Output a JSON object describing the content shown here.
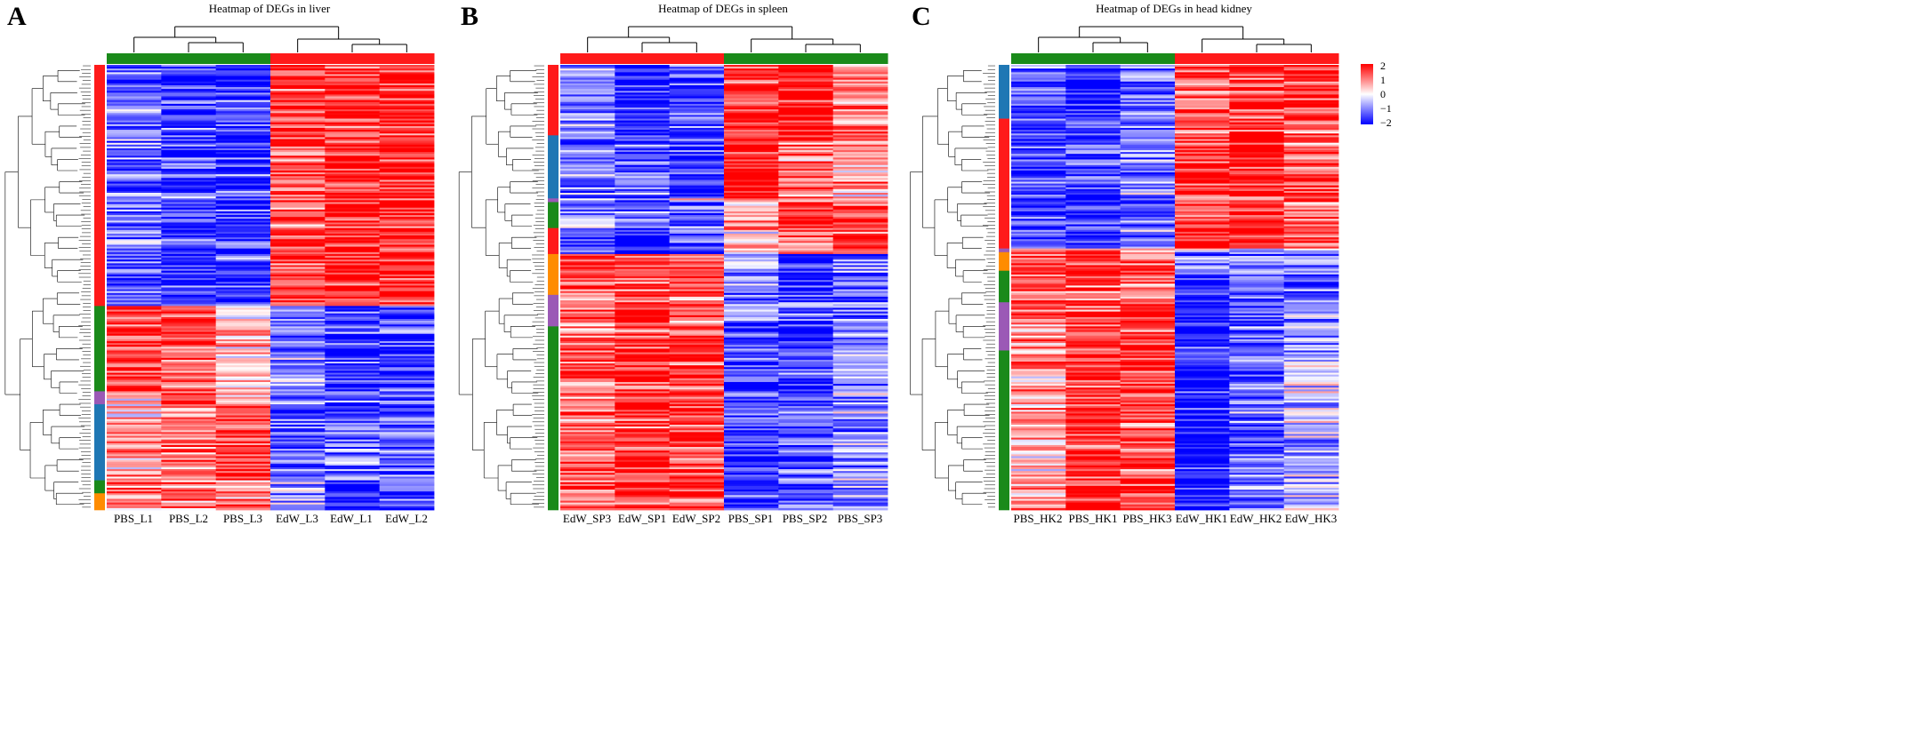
{
  "figure": {
    "panels": [
      {
        "letter": "A",
        "title": "Heatmap of DEGs in liver",
        "samples": [
          "PBS_L1",
          "PBS_L2",
          "PBS_L3",
          "EdW_L3",
          "EdW_L1",
          "EdW_L2"
        ],
        "group_colors": [
          "#1a8a1a",
          "#1a8a1a",
          "#1a8a1a",
          "#ff1a1a",
          "#ff1a1a",
          "#ff1a1a"
        ],
        "rows": 240,
        "clusters": [
          {
            "color": "#ff1a1a",
            "frac": 0.54,
            "pattern": [
              -1.0,
              -1.2,
              -1.3,
              1.1,
              1.3,
              1.4
            ]
          },
          {
            "color": "#1a8a1a",
            "frac": 0.19,
            "pattern": [
              1.4,
              1.2,
              0.4,
              -0.7,
              -1.2,
              -1.3
            ]
          },
          {
            "color": "#9b59b6",
            "frac": 0.03,
            "pattern": [
              0.5,
              1.5,
              0.5,
              -0.5,
              -1.0,
              -1.0
            ]
          },
          {
            "color": "#1f77b4",
            "frac": 0.17,
            "pattern": [
              0.6,
              1.0,
              1.2,
              -1.1,
              -0.8,
              -1.0
            ]
          },
          {
            "color": "#1a8a1a",
            "frac": 0.03,
            "pattern": [
              1.0,
              0.8,
              0.9,
              -0.5,
              -1.7,
              -1.0
            ]
          },
          {
            "color": "#ff8c00",
            "frac": 0.04,
            "pattern": [
              0.9,
              0.9,
              1.0,
              -0.5,
              -1.3,
              -1.2
            ]
          }
        ]
      },
      {
        "letter": "B",
        "title": "Heatmap of DEGs in spleen",
        "samples": [
          "EdW_SP3",
          "EdW_SP1",
          "EdW_SP2",
          "PBS_SP1",
          "PBS_SP2",
          "PBS_SP3"
        ],
        "group_colors": [
          "#ff1a1a",
          "#ff1a1a",
          "#ff1a1a",
          "#1a8a1a",
          "#1a8a1a",
          "#1a8a1a"
        ],
        "rows": 240,
        "clusters": [
          {
            "color": "#ff1a1a",
            "frac": 0.16,
            "pattern": [
              -0.8,
              -1.5,
              -1.2,
              1.3,
              1.4,
              0.6
            ]
          },
          {
            "color": "#1f77b4",
            "frac": 0.14,
            "pattern": [
              -0.9,
              -1.0,
              -1.3,
              1.6,
              0.8,
              0.5
            ]
          },
          {
            "color": "#9b59b6",
            "frac": 0.01,
            "pattern": [
              -0.5,
              -1.0,
              0.5,
              0.8,
              0.5,
              0.5
            ]
          },
          {
            "color": "#1a8a1a",
            "frac": 0.06,
            "pattern": [
              -0.8,
              -1.0,
              -1.1,
              0.5,
              1.3,
              1.2
            ]
          },
          {
            "color": "#ff1a1a",
            "frac": 0.06,
            "pattern": [
              -0.9,
              -1.5,
              -0.9,
              0.4,
              0.9,
              1.3
            ]
          },
          {
            "color": "#ff8c00",
            "frac": 0.09,
            "pattern": [
              1.2,
              1.0,
              1.1,
              -0.6,
              -1.5,
              -0.9
            ]
          },
          {
            "color": "#9b59b6",
            "frac": 0.07,
            "pattern": [
              1.0,
              1.4,
              1.0,
              -0.8,
              -1.0,
              -1.0
            ]
          },
          {
            "color": "#1a8a1a",
            "frac": 0.41,
            "pattern": [
              1.0,
              1.3,
              1.2,
              -1.2,
              -1.1,
              -0.7
            ]
          }
        ]
      },
      {
        "letter": "C",
        "title": "Heatmap of DEGs in head kidney",
        "samples": [
          "PBS_HK2",
          "PBS_HK1",
          "PBS_HK3",
          "EdW_HK1",
          "EdW_HK2",
          "EdW_HK3"
        ],
        "group_colors": [
          "#1a8a1a",
          "#1a8a1a",
          "#1a8a1a",
          "#ff1a1a",
          "#ff1a1a",
          "#ff1a1a"
        ],
        "rows": 240,
        "clusters": [
          {
            "color": "#1f77b4",
            "frac": 0.12,
            "pattern": [
              -1.1,
              -1.5,
              -0.9,
              1.1,
              1.2,
              1.3
            ]
          },
          {
            "color": "#ff1a1a",
            "frac": 0.29,
            "pattern": [
              -1.2,
              -1.3,
              -0.8,
              1.2,
              1.4,
              1.0
            ]
          },
          {
            "color": "#9b59b6",
            "frac": 0.01,
            "pattern": [
              0.5,
              0.5,
              0.5,
              -0.5,
              -0.5,
              -0.5
            ]
          },
          {
            "color": "#ff8c00",
            "frac": 0.04,
            "pattern": [
              1.1,
              1.2,
              0.9,
              -1.0,
              -0.9,
              -0.8
            ]
          },
          {
            "color": "#1a8a1a",
            "frac": 0.07,
            "pattern": [
              1.0,
              1.1,
              1.0,
              -1.3,
              -1.0,
              -0.8
            ]
          },
          {
            "color": "#9b59b6",
            "frac": 0.11,
            "pattern": [
              0.8,
              1.2,
              1.3,
              -1.4,
              -0.9,
              -0.7
            ]
          },
          {
            "color": "#1a8a1a",
            "frac": 0.36,
            "pattern": [
              0.5,
              1.3,
              1.2,
              -1.6,
              -0.9,
              -0.4
            ]
          }
        ]
      }
    ],
    "colorbar": {
      "ticks": [
        "2",
        "1",
        "0",
        "−1",
        "−2"
      ]
    }
  },
  "chart_data": {
    "type": "heatmap",
    "value_range": [
      -2,
      2
    ],
    "colorscale": [
      "#0000ff",
      "#ffffff",
      "#ff0000"
    ],
    "colorbar_ticks": [
      2,
      1,
      0,
      -1,
      -2
    ],
    "panels": [
      "A",
      "B",
      "C"
    ],
    "titles": [
      "Heatmap of DEGs in liver",
      "Heatmap of DEGs in spleen",
      "Heatmap of DEGs in head kidney"
    ]
  }
}
